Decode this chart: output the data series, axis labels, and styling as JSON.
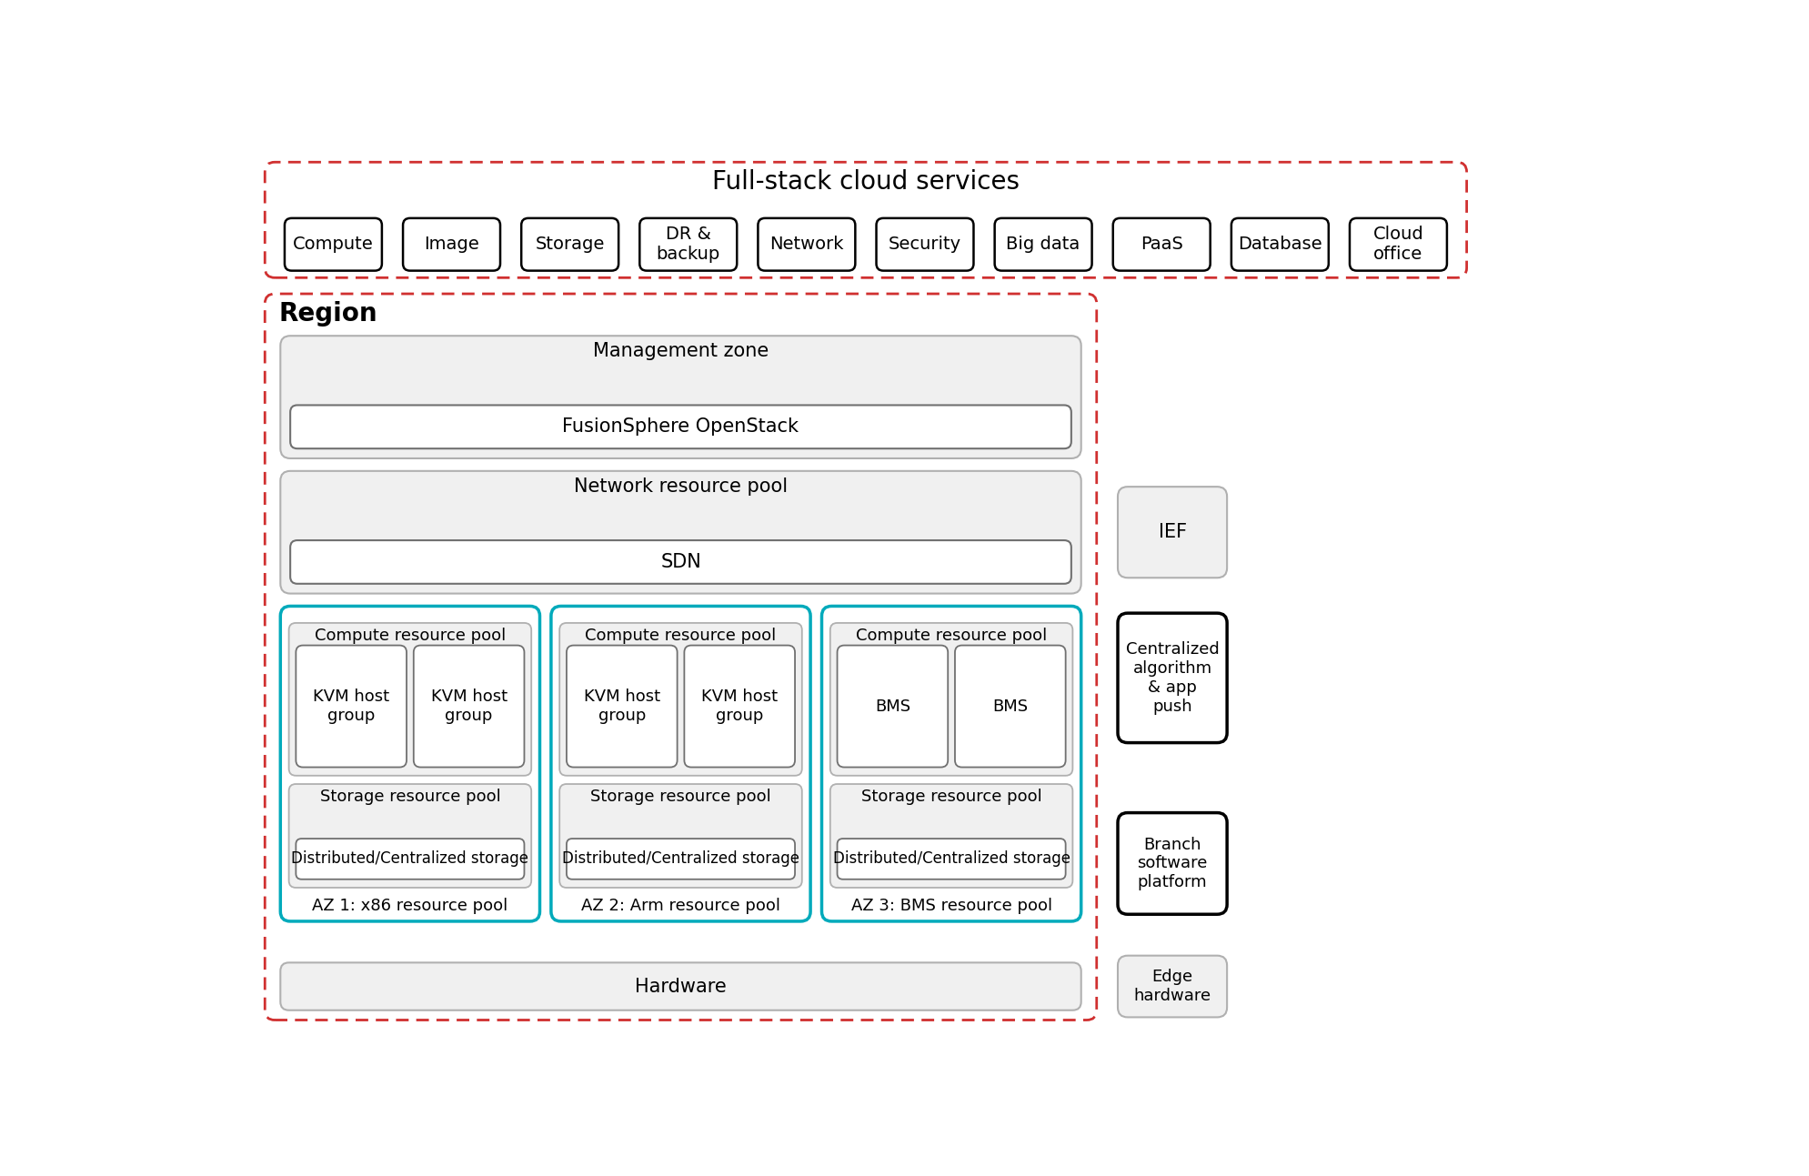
{
  "title": "Full-stack cloud services",
  "service_boxes": [
    "Compute",
    "Image",
    "Storage",
    "DR &\nbackup",
    "Network",
    "Security",
    "Big data",
    "PaaS",
    "Database",
    "Cloud\noffice"
  ],
  "region_label": "Region",
  "management_zone_label": "Management zone",
  "fusionsphere_label": "FusionSphere OpenStack",
  "network_pool_label": "Network resource pool",
  "sdn_label": "SDN",
  "az_labels": [
    "AZ 1: x86 resource pool",
    "AZ 2: Arm resource pool",
    "AZ 3: BMS resource pool"
  ],
  "compute_pool_label": "Compute resource pool",
  "storage_pool_label": "Storage resource pool",
  "storage_inner_label": "Distributed/Centralized storage",
  "az1_compute_items": [
    "KVM host\ngroup",
    "KVM host\ngroup"
  ],
  "az2_compute_items": [
    "KVM host\ngroup",
    "KVM host\ngroup"
  ],
  "az3_compute_items": [
    "BMS",
    "BMS"
  ],
  "hardware_label": "Hardware",
  "right_boxes": [
    "IEF",
    "Centralized\nalgorithm\n& app\npush",
    "Branch\nsoftware\nplatform",
    "Edge\nhardware"
  ],
  "colors": {
    "red_dashed": "#d03030",
    "teal": "#00aabb",
    "gray_bg": "#f0f0f0",
    "white": "#ffffff",
    "black": "#000000",
    "border_gray": "#b0b0b0",
    "inner_border": "#707070"
  },
  "fig_w": 19.89,
  "fig_h": 12.93,
  "dpi": 100
}
